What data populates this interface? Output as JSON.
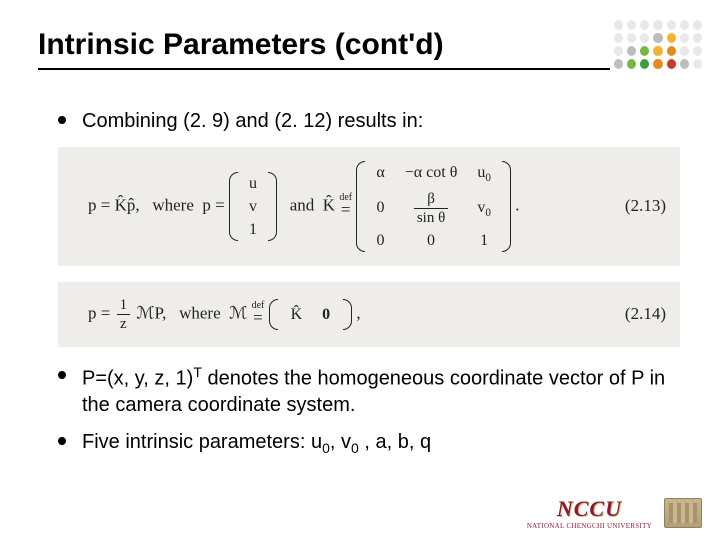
{
  "title": "Intrinsic Parameters (cont'd)",
  "bullets": {
    "b1": "Combining (2. 9) and (2. 12) results in:",
    "b2_pre": "P=(x, y, z, 1)",
    "b2_sup": "T",
    "b2_post": " denotes the homogeneous coordinate vector of P in the camera coordinate system.",
    "b3_pre": "Five intrinsic parameters: u",
    "b3_s1": "0",
    "b3_m1": ", v",
    "b3_s2": "0",
    "b3_post": " , a, b, q"
  },
  "eq1": {
    "lhs": "p = K̂p̂,   where  p = ",
    "vec": [
      "u",
      "v",
      "1"
    ],
    "mid": "  and  K̂ ",
    "defeq_top": "def",
    "defeq": "=",
    "k00": "α",
    "k01": "−α cot θ",
    "k02_top": "u",
    "k02_sub": "0",
    "k10": "0",
    "k11_top": "β",
    "k11_bot": "sin θ",
    "k12_top": "v",
    "k12_sub": "0",
    "k20": "0",
    "k21": "0",
    "k22": "1",
    "tail": " .",
    "num": "(2.13)"
  },
  "eq2": {
    "lhs_pre": "p = ",
    "frac_n": "1",
    "frac_d": "z",
    "lhs_post": " ℳP,   where  ℳ ",
    "defeq_top": "def",
    "defeq": "=",
    "mk": "K̂",
    "mzero": "0",
    "tail": " ,",
    "num": "(2.14)"
  },
  "logo": {
    "name": "NCCU",
    "sub": "NATIONAL CHENGCHI UNIVERSITY"
  },
  "colors": {
    "dot_rows": [
      [
        "#e8e8e8",
        "#e8e8e8",
        "#e8e8e8",
        "#e8e8e8",
        "#e8e8e8",
        "#e8e8e8",
        "#e8e8e8"
      ],
      [
        "#e8e8e8",
        "#e8e8e8",
        "#e8e8e8",
        "#bdbdbd",
        "#f2b430",
        "#e8e8e8",
        "#e8e8e8"
      ],
      [
        "#e8e8e8",
        "#bdbdbd",
        "#7ab642",
        "#f2b430",
        "#e58a1f",
        "#e8e8e8",
        "#e8e8e8"
      ],
      [
        "#bdbdbd",
        "#7ab642",
        "#3f9b3f",
        "#e58a1f",
        "#c93b2f",
        "#bdbdbd",
        "#e8e8e8"
      ]
    ]
  }
}
